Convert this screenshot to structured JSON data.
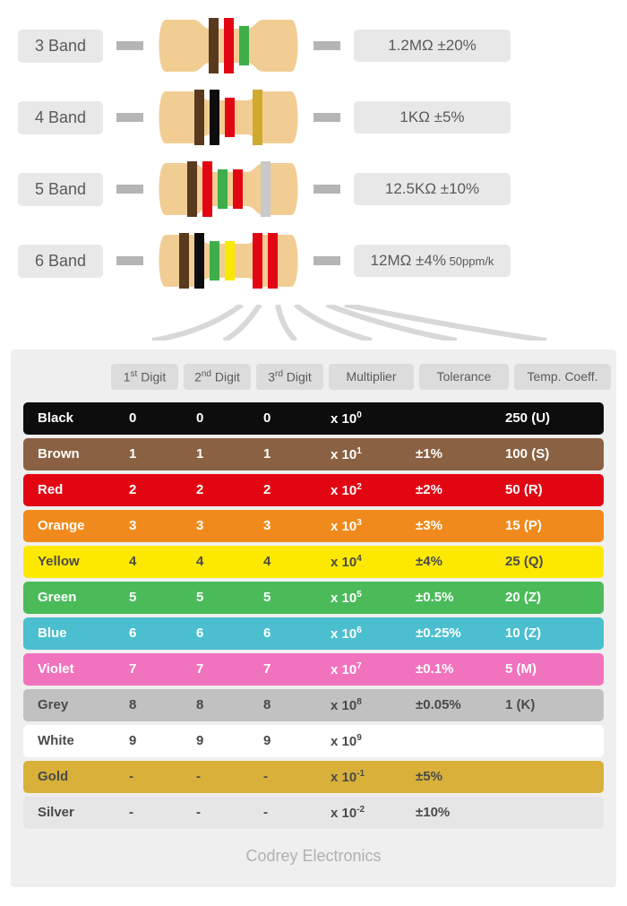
{
  "resistor_body_color": "#f1cd94",
  "wire_color": "#b5b5b5",
  "pill_bg": "#e8e8e8",
  "panel_bg": "#efefef",
  "header_bg": "#dcdcdc",
  "text_color": "#5a5a5a",
  "footer_color": "#b0b0b0",
  "examples": [
    {
      "label": "3 Band",
      "value": "1.2MΩ ±20%",
      "value_small": "",
      "bands": [
        {
          "color": "#5a3a1e",
          "narrow": false
        },
        {
          "color": "#e20613",
          "narrow": false
        },
        {
          "color": "#3fae4a",
          "narrow": true
        }
      ]
    },
    {
      "label": "4 Band",
      "value": "1KΩ ±5%",
      "value_small": "",
      "bands": [
        {
          "color": "#5a3a1e",
          "narrow": false
        },
        {
          "color": "#0d0d0d",
          "narrow": false
        },
        {
          "color": "#e20613",
          "narrow": true
        },
        {
          "color": "#d0a92f",
          "narrow": false,
          "gap": true
        }
      ]
    },
    {
      "label": "5 Band",
      "value": "12.5KΩ ±10%",
      "value_small": "",
      "bands": [
        {
          "color": "#5a3a1e",
          "narrow": false
        },
        {
          "color": "#e20613",
          "narrow": false
        },
        {
          "color": "#3fae4a",
          "narrow": true
        },
        {
          "color": "#e20613",
          "narrow": true
        },
        {
          "color": "#c9c9c9",
          "narrow": false,
          "gap": true
        }
      ]
    },
    {
      "label": "6 Band",
      "value": "12MΩ ±4%",
      "value_small": " 50ppm/k",
      "bands": [
        {
          "color": "#5a3a1e",
          "narrow": false
        },
        {
          "color": "#0d0d0d",
          "narrow": false
        },
        {
          "color": "#3fae4a",
          "narrow": true
        },
        {
          "color": "#f9e900",
          "narrow": true
        },
        {
          "color": "#e20613",
          "narrow": false,
          "gap": true
        },
        {
          "color": "#e20613",
          "narrow": false
        }
      ]
    }
  ],
  "headers": [
    "1<sup>st</sup> Digit",
    "2<sup>nd</sup> Digit",
    "3<sup>rd</sup> Digit",
    "Multiplier",
    "Tolerance",
    "Temp. Coeff."
  ],
  "rows": [
    {
      "name": "Black",
      "bg": "#0d0d0d",
      "fg": "#ffffff",
      "d1": "0",
      "d2": "0",
      "d3": "0",
      "mult": "x 10<sup>0</sup>",
      "tol": "",
      "tc": "250 (U)"
    },
    {
      "name": "Brown",
      "bg": "#8a6142",
      "fg": "#ffffff",
      "d1": "1",
      "d2": "1",
      "d3": "1",
      "mult": "x 10<sup>1</sup>",
      "tol": "±1%",
      "tc": "100 (S)"
    },
    {
      "name": "Red",
      "bg": "#e20613",
      "fg": "#ffffff",
      "d1": "2",
      "d2": "2",
      "d3": "2",
      "mult": "x 10<sup>2</sup>",
      "tol": "±2%",
      "tc": "50 (R)"
    },
    {
      "name": "Orange",
      "bg": "#f18a1c",
      "fg": "#ffffff",
      "d1": "3",
      "d2": "3",
      "d3": "3",
      "mult": "x 10<sup>3</sup>",
      "tol": "±3%",
      "tc": "15 (P)"
    },
    {
      "name": "Yellow",
      "bg": "#fde900",
      "fg": "#4a4a4a",
      "d1": "4",
      "d2": "4",
      "d3": "4",
      "mult": "x 10<sup>4</sup>",
      "tol": "±4%",
      "tc": "25 (Q)"
    },
    {
      "name": "Green",
      "bg": "#4bbb5a",
      "fg": "#ffffff",
      "d1": "5",
      "d2": "5",
      "d3": "5",
      "mult": "x 10<sup>5</sup>",
      "tol": "±0.5%",
      "tc": "20 (Z)"
    },
    {
      "name": "Blue",
      "bg": "#4bbfcf",
      "fg": "#ffffff",
      "d1": "6",
      "d2": "6",
      "d3": "6",
      "mult": "x 10<sup>6</sup>",
      "tol": "±0.25%",
      "tc": "10 (Z)"
    },
    {
      "name": "Violet",
      "bg": "#f173bd",
      "fg": "#ffffff",
      "d1": "7",
      "d2": "7",
      "d3": "7",
      "mult": "x 10<sup>7</sup>",
      "tol": "±0.1%",
      "tc": "5 (M)"
    },
    {
      "name": "Grey",
      "bg": "#c1c1c1",
      "fg": "#4a4a4a",
      "d1": "8",
      "d2": "8",
      "d3": "8",
      "mult": "x 10<sup>8</sup>",
      "tol": "±0.05%",
      "tc": "1 (K)"
    },
    {
      "name": "White",
      "bg": "#ffffff",
      "fg": "#4a4a4a",
      "d1": "9",
      "d2": "9",
      "d3": "9",
      "mult": "x 10<sup>9</sup>",
      "tol": "",
      "tc": ""
    },
    {
      "name": "Gold",
      "bg": "#d9b13a",
      "fg": "#4a4a4a",
      "d1": "-",
      "d2": "-",
      "d3": "-",
      "mult": "x 10<sup>-1</sup>",
      "tol": "±5%",
      "tc": ""
    },
    {
      "name": "Silver",
      "bg": "#e6e6e6",
      "fg": "#4a4a4a",
      "d1": "-",
      "d2": "-",
      "d3": "-",
      "mult": "x 10<sup>-2</sup>",
      "tol": "±10%",
      "tc": ""
    }
  ],
  "footer": "Codrey Electronics"
}
